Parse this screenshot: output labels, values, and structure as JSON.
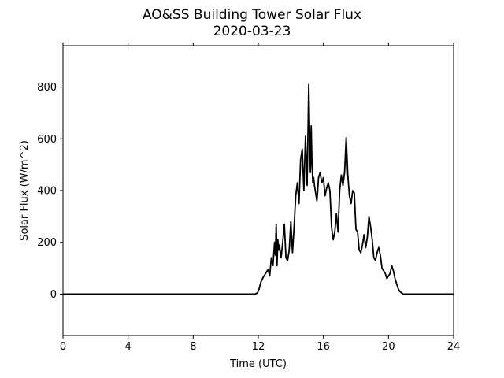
{
  "chart_data": {
    "type": "line",
    "title": "AO&SS Building Tower Solar Flux",
    "subtitle": "2020-03-23",
    "xlabel": "Time (UTC)",
    "ylabel": "Solar Flux (W/m^2)",
    "xlim": [
      0,
      24
    ],
    "ylim": [
      -160,
      960
    ],
    "xticks": [
      0,
      4,
      8,
      12,
      16,
      20,
      24
    ],
    "yticks": [
      0,
      200,
      400,
      600,
      800
    ],
    "grid": false,
    "line_color": "#000000",
    "series": [
      {
        "x": [
          0,
          11.8,
          11.95,
          12.05,
          12.15,
          12.3,
          12.45,
          12.6,
          12.7,
          12.8,
          12.9,
          13.0,
          13.05,
          13.1,
          13.15,
          13.2,
          13.25,
          13.3,
          13.35,
          13.4,
          13.5,
          13.6,
          13.7,
          13.8,
          13.9,
          14.0,
          14.1,
          14.2,
          14.3,
          14.4,
          14.5,
          14.6,
          14.7,
          14.8,
          14.9,
          15.0,
          15.1,
          15.2,
          15.25,
          15.3,
          15.35,
          15.4,
          15.45,
          15.5,
          15.55,
          15.6,
          15.65,
          15.7,
          15.8,
          15.9,
          16.0,
          16.1,
          16.2,
          16.3,
          16.4,
          16.5,
          16.6,
          16.7,
          16.8,
          16.9,
          17.0,
          17.1,
          17.2,
          17.3,
          17.4,
          17.5,
          17.6,
          17.7,
          17.8,
          17.9,
          18.0,
          18.1,
          18.2,
          18.3,
          18.4,
          18.5,
          18.6,
          18.7,
          18.8,
          18.9,
          19.0,
          19.1,
          19.2,
          19.3,
          19.4,
          19.5,
          19.6,
          19.7,
          19.8,
          19.9,
          20.0,
          20.1,
          20.2,
          20.3,
          20.4,
          20.5,
          20.6,
          20.7,
          20.8,
          20.9,
          21.0,
          21.2,
          21.4,
          21.6,
          21.8,
          22.0,
          22.2,
          22.4,
          22.6,
          22.8,
          23.0,
          23.2,
          23.4,
          23.6,
          23.8,
          24.0
        ],
        "y": [
          0,
          0,
          5,
          20,
          45,
          65,
          80,
          95,
          70,
          140,
          110,
          200,
          150,
          270,
          110,
          210,
          170,
          190,
          160,
          140,
          200,
          270,
          140,
          130,
          170,
          280,
          160,
          260,
          380,
          430,
          350,
          520,
          560,
          400,
          610,
          420,
          810,
          470,
          650,
          500,
          430,
          450,
          420,
          400,
          380,
          360,
          400,
          450,
          470,
          430,
          450,
          380,
          410,
          430,
          400,
          260,
          210,
          240,
          310,
          240,
          400,
          460,
          420,
          470,
          605,
          460,
          380,
          350,
          400,
          390,
          250,
          240,
          170,
          160,
          190,
          230,
          180,
          220,
          300,
          260,
          210,
          140,
          130,
          160,
          180,
          150,
          100,
          90,
          80,
          60,
          70,
          80,
          110,
          90,
          60,
          40,
          20,
          10,
          5,
          0,
          0,
          0,
          0,
          0,
          0,
          0,
          0,
          0,
          0,
          0,
          0,
          0,
          0,
          0,
          0,
          0
        ]
      }
    ]
  }
}
